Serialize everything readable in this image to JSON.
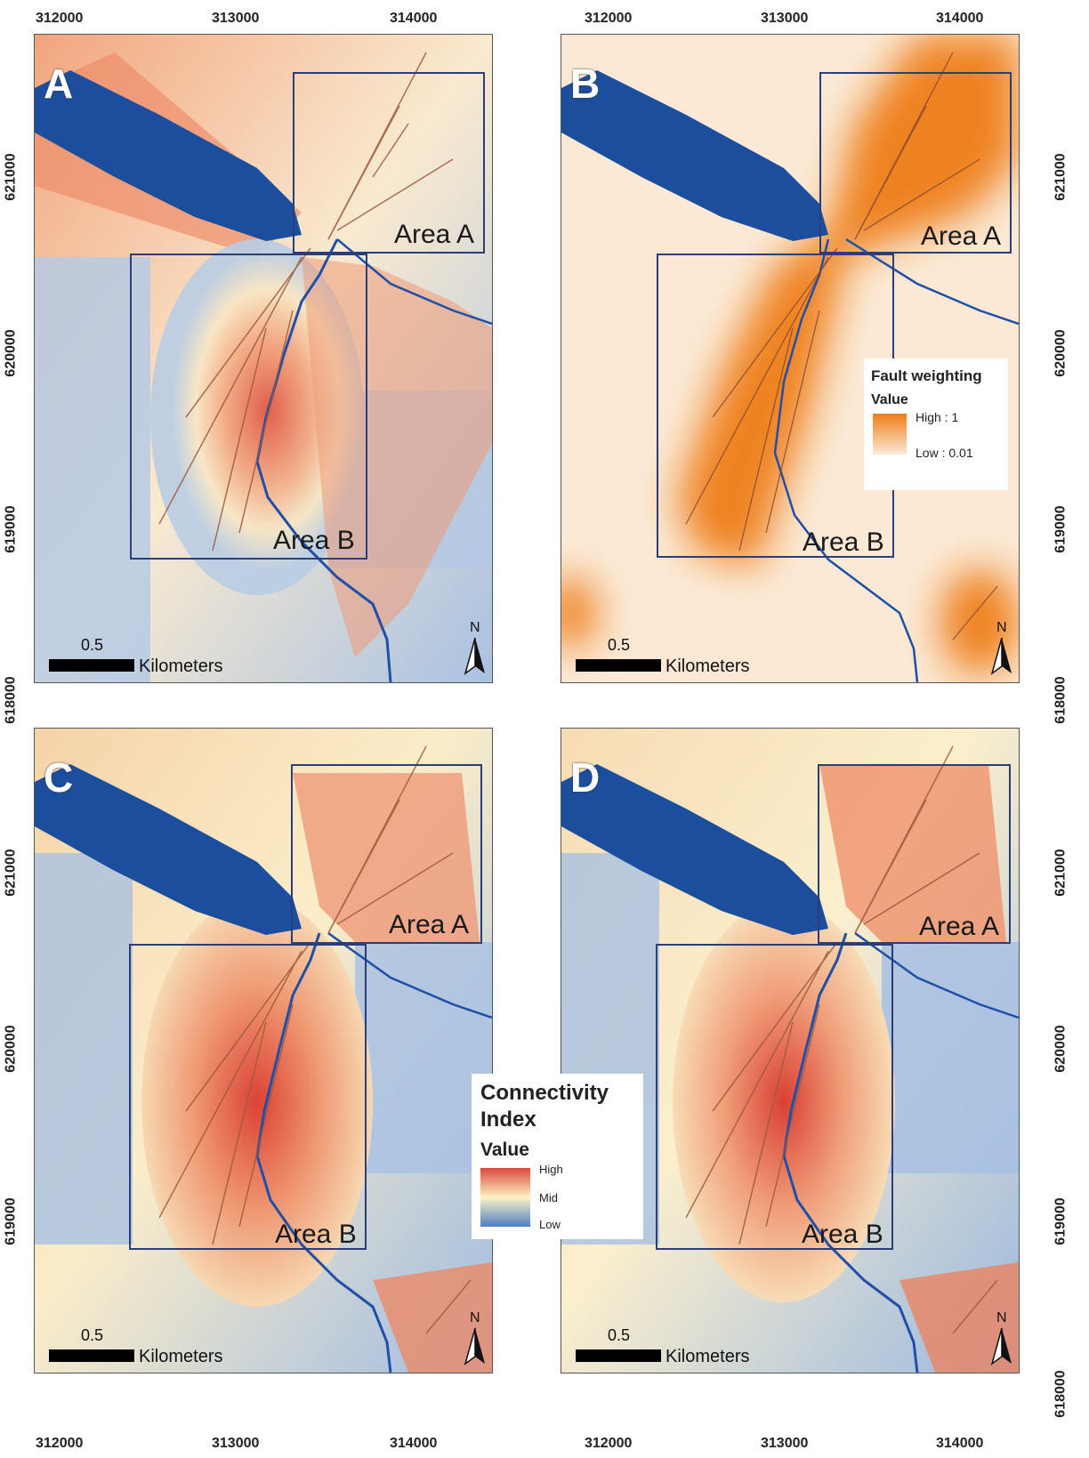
{
  "axes": {
    "x_ticks": [
      "312000",
      "313000",
      "314000"
    ],
    "y_ticks": [
      "621000",
      "620000",
      "619000",
      "618000"
    ]
  },
  "panels": [
    {
      "letter": "A",
      "scheme": "connectivity-a"
    },
    {
      "letter": "B",
      "scheme": "fault-weighting"
    },
    {
      "letter": "C",
      "scheme": "connectivity-c"
    },
    {
      "letter": "D",
      "scheme": "connectivity-d"
    }
  ],
  "areas": {
    "a": "Area A",
    "b": "Area B"
  },
  "scale": {
    "value": "0.5",
    "unit": "Kilometers"
  },
  "north_label": "N",
  "fault_legend": {
    "title": "Fault weighting",
    "subtitle": "Value",
    "high": "High : 1",
    "low": "Low : 0.01",
    "colors": {
      "high": "#ee7d17",
      "low": "#fbe9d6"
    }
  },
  "ci_legend": {
    "title_line1": "Connectivity",
    "title_line2": "Index",
    "subtitle": "Value",
    "high": "High",
    "mid": "Mid",
    "low": "Low",
    "colors": {
      "high": "#d9483b",
      "mid": "#fdf2c3",
      "low": "#4f7fc4"
    }
  },
  "colors": {
    "lake": "#1b4f9e",
    "river": "#1f4fa8",
    "fault": "#9c5a3c",
    "box": "#2c3e7a"
  }
}
